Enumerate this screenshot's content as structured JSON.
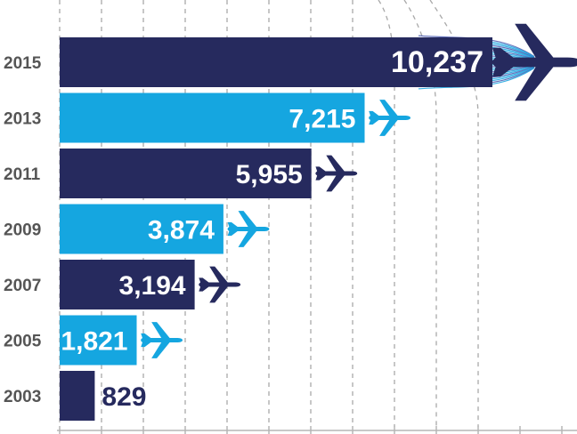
{
  "chart_data": {
    "type": "bar",
    "orientation": "horizontal",
    "title": "",
    "xlabel": "",
    "ylabel": "",
    "categories": [
      "2015",
      "2013",
      "2011",
      "2009",
      "2007",
      "2005",
      "2003"
    ],
    "values": [
      10237,
      7215,
      5955,
      3874,
      3194,
      1821,
      829
    ],
    "value_labels": [
      "10,237",
      "7,215",
      "5,955",
      "3,874",
      "3,194",
      "1,821",
      "829"
    ],
    "xlim": [
      0,
      12800
    ],
    "grid": "vertical dashed",
    "legend": "none",
    "colors": [
      "#262a5e",
      "#15a6e0",
      "#262a5e",
      "#15a6e0",
      "#262a5e",
      "#15a6e0",
      "#262a5e"
    ],
    "decorations": [
      "airplane-icon"
    ]
  }
}
